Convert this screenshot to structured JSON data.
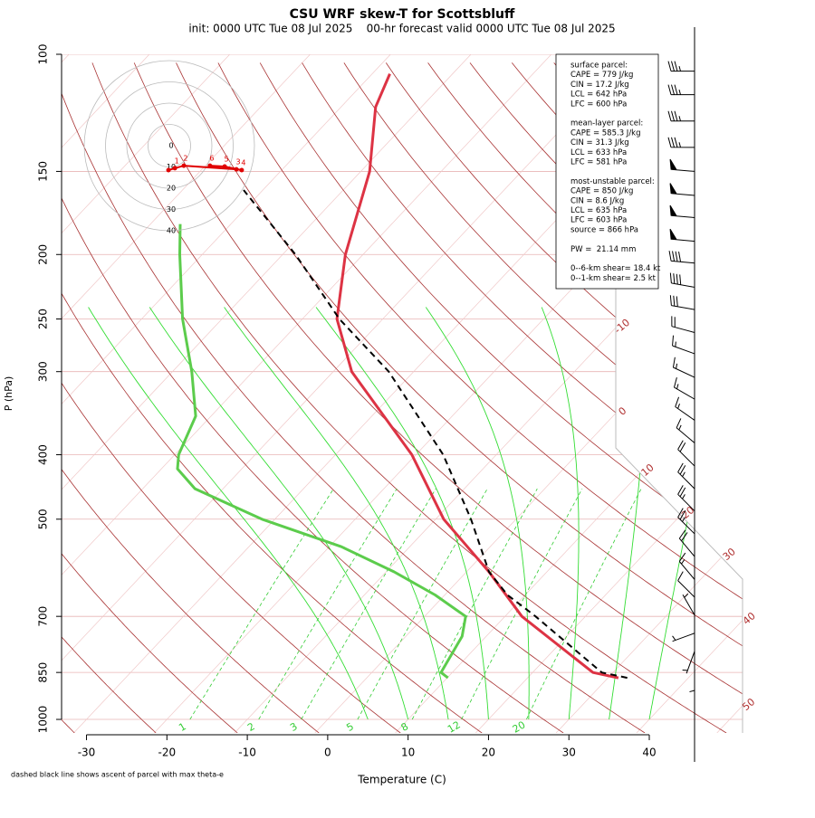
{
  "chart_data": {
    "type": "skewt",
    "title": "CSU WRF skew-T for Scottsbluff",
    "subtitle": "init: 0000 UTC Tue 08 Jul 2025    00-hr forecast valid 0000 UTC Tue 08 Jul 2025",
    "xlabel": "Temperature (C)",
    "ylabel": "P (hPa)",
    "footnote": "dashed black line shows ascent of parcel with max theta-e",
    "xlim": [
      -33.1,
      51.6
    ],
    "ylim": [
      1048,
      100
    ],
    "log_y": true,
    "xticks": [
      -30,
      -20,
      -10,
      0,
      10,
      20,
      30,
      40
    ],
    "yticks": [
      100,
      150,
      200,
      250,
      300,
      400,
      500,
      700,
      850,
      1000
    ],
    "series": [
      {
        "color": "#dd3344",
        "dash": false,
        "pressure": [
          866,
          850,
          700,
          600,
          500,
          400,
          300,
          250,
          200,
          150,
          120,
          107
        ],
        "values": [
          31.3,
          27.5,
          12.1,
          2.8,
          -9.0,
          -20.5,
          -37.7,
          -45.7,
          -52.2,
          -58.9,
          -65.7,
          -67.8
        ]
      },
      {
        "color": "#5ccc4c",
        "dash": false,
        "pressure": [
          866,
          850,
          750,
          700,
          650,
          600,
          550,
          500,
          450,
          420,
          400,
          350,
          300,
          250,
          200,
          180
        ],
        "values": [
          10.1,
          8.6,
          7.0,
          5.1,
          -1.2,
          -9.0,
          -18.5,
          -31.6,
          -43.5,
          -48.0,
          -49.5,
          -51.9,
          -57.6,
          -64.9,
          -72.8,
          -76.3
        ]
      },
      {
        "color": "#000000",
        "dash": true,
        "pressure": [
          866,
          850,
          700,
          650,
          600,
          500,
          400,
          300,
          250,
          200,
          160
        ],
        "values": [
          32.4,
          28.6,
          13.8,
          7.8,
          2.8,
          -5.6,
          -16.6,
          -33.1,
          -45.4,
          -58.4,
          -72.4
        ]
      }
    ],
    "isotherm_labels": [
      -10,
      0,
      10,
      20,
      30,
      40,
      50
    ],
    "mixing_ratio_labels": [
      1,
      2,
      3,
      5,
      8,
      12,
      20
    ],
    "winds": {
      "pressure": [
        106,
        115,
        126,
        138,
        150,
        163,
        176,
        191,
        206,
        224,
        242,
        262,
        282,
        306,
        330,
        355,
        384,
        416,
        450,
        486,
        526,
        569,
        616,
        655,
        697,
        742,
        790,
        843
      ],
      "speed": [
        35,
        35,
        35,
        35,
        50,
        50,
        50,
        50,
        40,
        40,
        30,
        20,
        15,
        15,
        15,
        15,
        15,
        20,
        25,
        25,
        25,
        20,
        15,
        10,
        5,
        5,
        5,
        5
      ],
      "direction": [
        270,
        270,
        270,
        270,
        275,
        275,
        275,
        275,
        275,
        280,
        280,
        285,
        290,
        295,
        300,
        305,
        310,
        315,
        315,
        315,
        315,
        320,
        320,
        315,
        330,
        250,
        200,
        180
      ]
    },
    "hodograph": {
      "ring_labels": [
        0,
        10,
        20,
        30,
        40
      ],
      "u": [
        -0.4,
        2.6,
        6.8,
        31.5,
        34.0,
        26.0,
        19.1
      ],
      "v": [
        -11.5,
        -10.6,
        -9.4,
        -11.1,
        -11.5,
        -9.8,
        -9.4
      ],
      "labels": [
        null,
        "1",
        "2",
        "3",
        "4",
        "5",
        "6"
      ]
    },
    "info": [
      [
        "surface parcel:",
        "CAPE = 779 J/kg",
        "CIN = 17.2 J/kg",
        "LCL = 642 hPa",
        "LFC = 600 hPa"
      ],
      [
        "mean-layer parcel:",
        "CAPE = 585.3 J/kg",
        "CIN = 31.3 J/kg",
        "LCL = 633 hPa",
        "LFC = 581 hPa"
      ],
      [
        "most-unstable parcel:",
        "CAPE = 850 J/kg",
        "CIN = 8.6 J/kg",
        "LCL = 635 hPa",
        "LFC = 603 hPa",
        "source = 866 hPa"
      ],
      [
        "PW =  21.14 mm"
      ],
      [
        "0--6-km shear= 18.4 kt",
        "0--1-km shear= 2.5 kt"
      ]
    ]
  }
}
